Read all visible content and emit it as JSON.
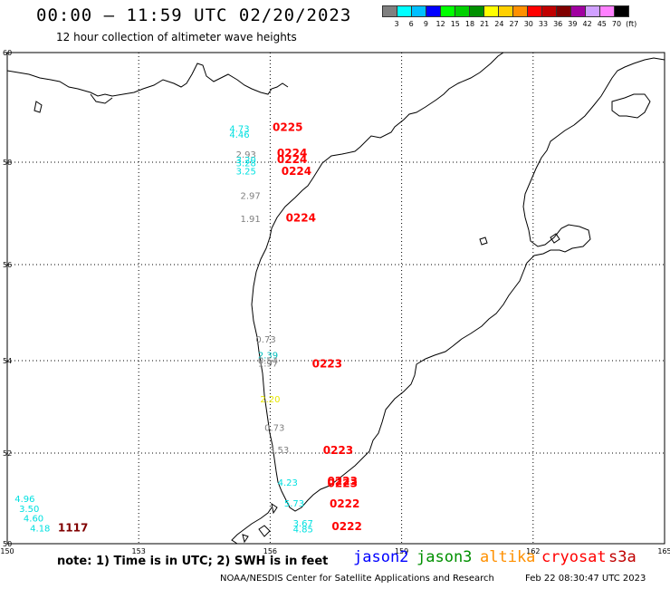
{
  "header": {
    "title": "00:00 – 11:59 UTC 02/20/2023",
    "subtitle": "12 hour collection of altimeter wave heights"
  },
  "legend": {
    "colors": [
      "#808080",
      "#00ffff",
      "#00bfff",
      "#0000ff",
      "#00ff00",
      "#00d000",
      "#009000",
      "#ffff00",
      "#ffd000",
      "#ff9000",
      "#ff0000",
      "#c00000",
      "#800000",
      "#a000a0",
      "#d0a0ff",
      "#ff80ff",
      "#000000"
    ],
    "ticks": [
      "3",
      "6",
      "9",
      "12",
      "15",
      "18",
      "21",
      "24",
      "27",
      "30",
      "33",
      "36",
      "39",
      "42",
      "45",
      "70",
      "(ft)"
    ]
  },
  "map": {
    "x_ticks": [
      "150",
      "153",
      "156",
      "159",
      "162",
      "165"
    ],
    "y_ticks": [
      "60",
      "58",
      "56",
      "54",
      "52",
      "50"
    ],
    "lon_range": [
      150,
      165
    ],
    "lat_range": [
      50,
      60
    ]
  },
  "labels": [
    {
      "text": "4.73",
      "color": "#00e0e0",
      "lon": 155.3,
      "lat": 58.55
    },
    {
      "text": "4.46",
      "color": "#00e0e0",
      "lon": 155.3,
      "lat": 58.45
    },
    {
      "text": "0225",
      "color": "#ff0000",
      "lon": 156.4,
      "lat": 58.57
    },
    {
      "text": "2.93",
      "color": "#808080",
      "lon": 155.45,
      "lat": 58.08
    },
    {
      "text": "3.20",
      "color": "#00e0e0",
      "lon": 155.45,
      "lat": 57.98
    },
    {
      "text": "3.28",
      "color": "#00e0e0",
      "lon": 155.45,
      "lat": 57.92
    },
    {
      "text": "3.25",
      "color": "#00e0e0",
      "lon": 155.45,
      "lat": 57.76
    },
    {
      "text": "0224",
      "color": "#ff0000",
      "lon": 156.5,
      "lat": 58.1
    },
    {
      "text": "0224",
      "color": "#ff0000",
      "lon": 156.5,
      "lat": 57.98
    },
    {
      "text": "0224",
      "color": "#ff0000",
      "lon": 156.6,
      "lat": 57.75
    },
    {
      "text": "2.97",
      "color": "#808080",
      "lon": 155.55,
      "lat": 57.28
    },
    {
      "text": "1.91",
      "color": "#808080",
      "lon": 155.55,
      "lat": 56.83
    },
    {
      "text": "0224",
      "color": "#ff0000",
      "lon": 156.7,
      "lat": 56.84
    },
    {
      "text": "0.73",
      "color": "#808080",
      "lon": 155.9,
      "lat": 54.38
    },
    {
      "text": "2.39",
      "color": "#00bfbf",
      "lon": 155.95,
      "lat": 54.05
    },
    {
      "text": "0.54",
      "color": "#808080",
      "lon": 155.95,
      "lat": 53.93
    },
    {
      "text": "1.97",
      "color": "#808080",
      "lon": 155.95,
      "lat": 53.87
    },
    {
      "text": "0223",
      "color": "#ff0000",
      "lon": 157.3,
      "lat": 53.85
    },
    {
      "text": "2.20",
      "color": "#e8e800",
      "lon": 156.0,
      "lat": 53.1
    },
    {
      "text": "0.73",
      "color": "#808080",
      "lon": 156.1,
      "lat": 52.48
    },
    {
      "text": "3.53",
      "color": "#808080",
      "lon": 156.2,
      "lat": 52.0
    },
    {
      "text": "0223",
      "color": "#ff0000",
      "lon": 157.55,
      "lat": 51.98
    },
    {
      "text": "4.23",
      "color": "#00e0e0",
      "lon": 156.4,
      "lat": 51.28
    },
    {
      "text": "0223",
      "color": "#ff0000",
      "lon": 157.65,
      "lat": 51.3
    },
    {
      "text": "0223",
      "color": "#ff0000",
      "lon": 157.65,
      "lat": 51.25
    },
    {
      "text": "5.73",
      "color": "#00e0e0",
      "lon": 156.55,
      "lat": 50.82
    },
    {
      "text": "0222",
      "color": "#ff0000",
      "lon": 157.7,
      "lat": 50.8
    },
    {
      "text": "3.67",
      "color": "#00e0e0",
      "lon": 156.75,
      "lat": 50.38
    },
    {
      "text": "4.85",
      "color": "#00e0e0",
      "lon": 156.75,
      "lat": 50.25
    },
    {
      "text": "0222",
      "color": "#ff0000",
      "lon": 157.75,
      "lat": 50.3
    },
    {
      "text": "4.96",
      "color": "#00e0e0",
      "lon": 150.4,
      "lat": 50.92
    },
    {
      "text": "3.50",
      "color": "#00e0e0",
      "lon": 150.5,
      "lat": 50.7
    },
    {
      "text": "4.60",
      "color": "#00e0e0",
      "lon": 150.6,
      "lat": 50.49
    },
    {
      "text": "4.18",
      "color": "#00e0e0",
      "lon": 150.75,
      "lat": 50.27
    },
    {
      "text": "1117",
      "color": "#800000",
      "lon": 151.5,
      "lat": 50.27
    }
  ],
  "footer": {
    "note": "note: 1) Time is in UTC; 2) SWH is in feet",
    "credit": "NOAA/NESDIS Center for Satellite Applications and Research",
    "timestamp": "Feb 22 08:30:47 UTC 2023",
    "satellites": [
      {
        "name": "jason2",
        "color": "#0000ff"
      },
      {
        "name": "jason3",
        "color": "#009000"
      },
      {
        "name": "altika",
        "color": "#ff9000"
      },
      {
        "name": "cryosat",
        "color": "#ff0000"
      },
      {
        "name": "s3a",
        "color": "#c00000"
      }
    ]
  }
}
